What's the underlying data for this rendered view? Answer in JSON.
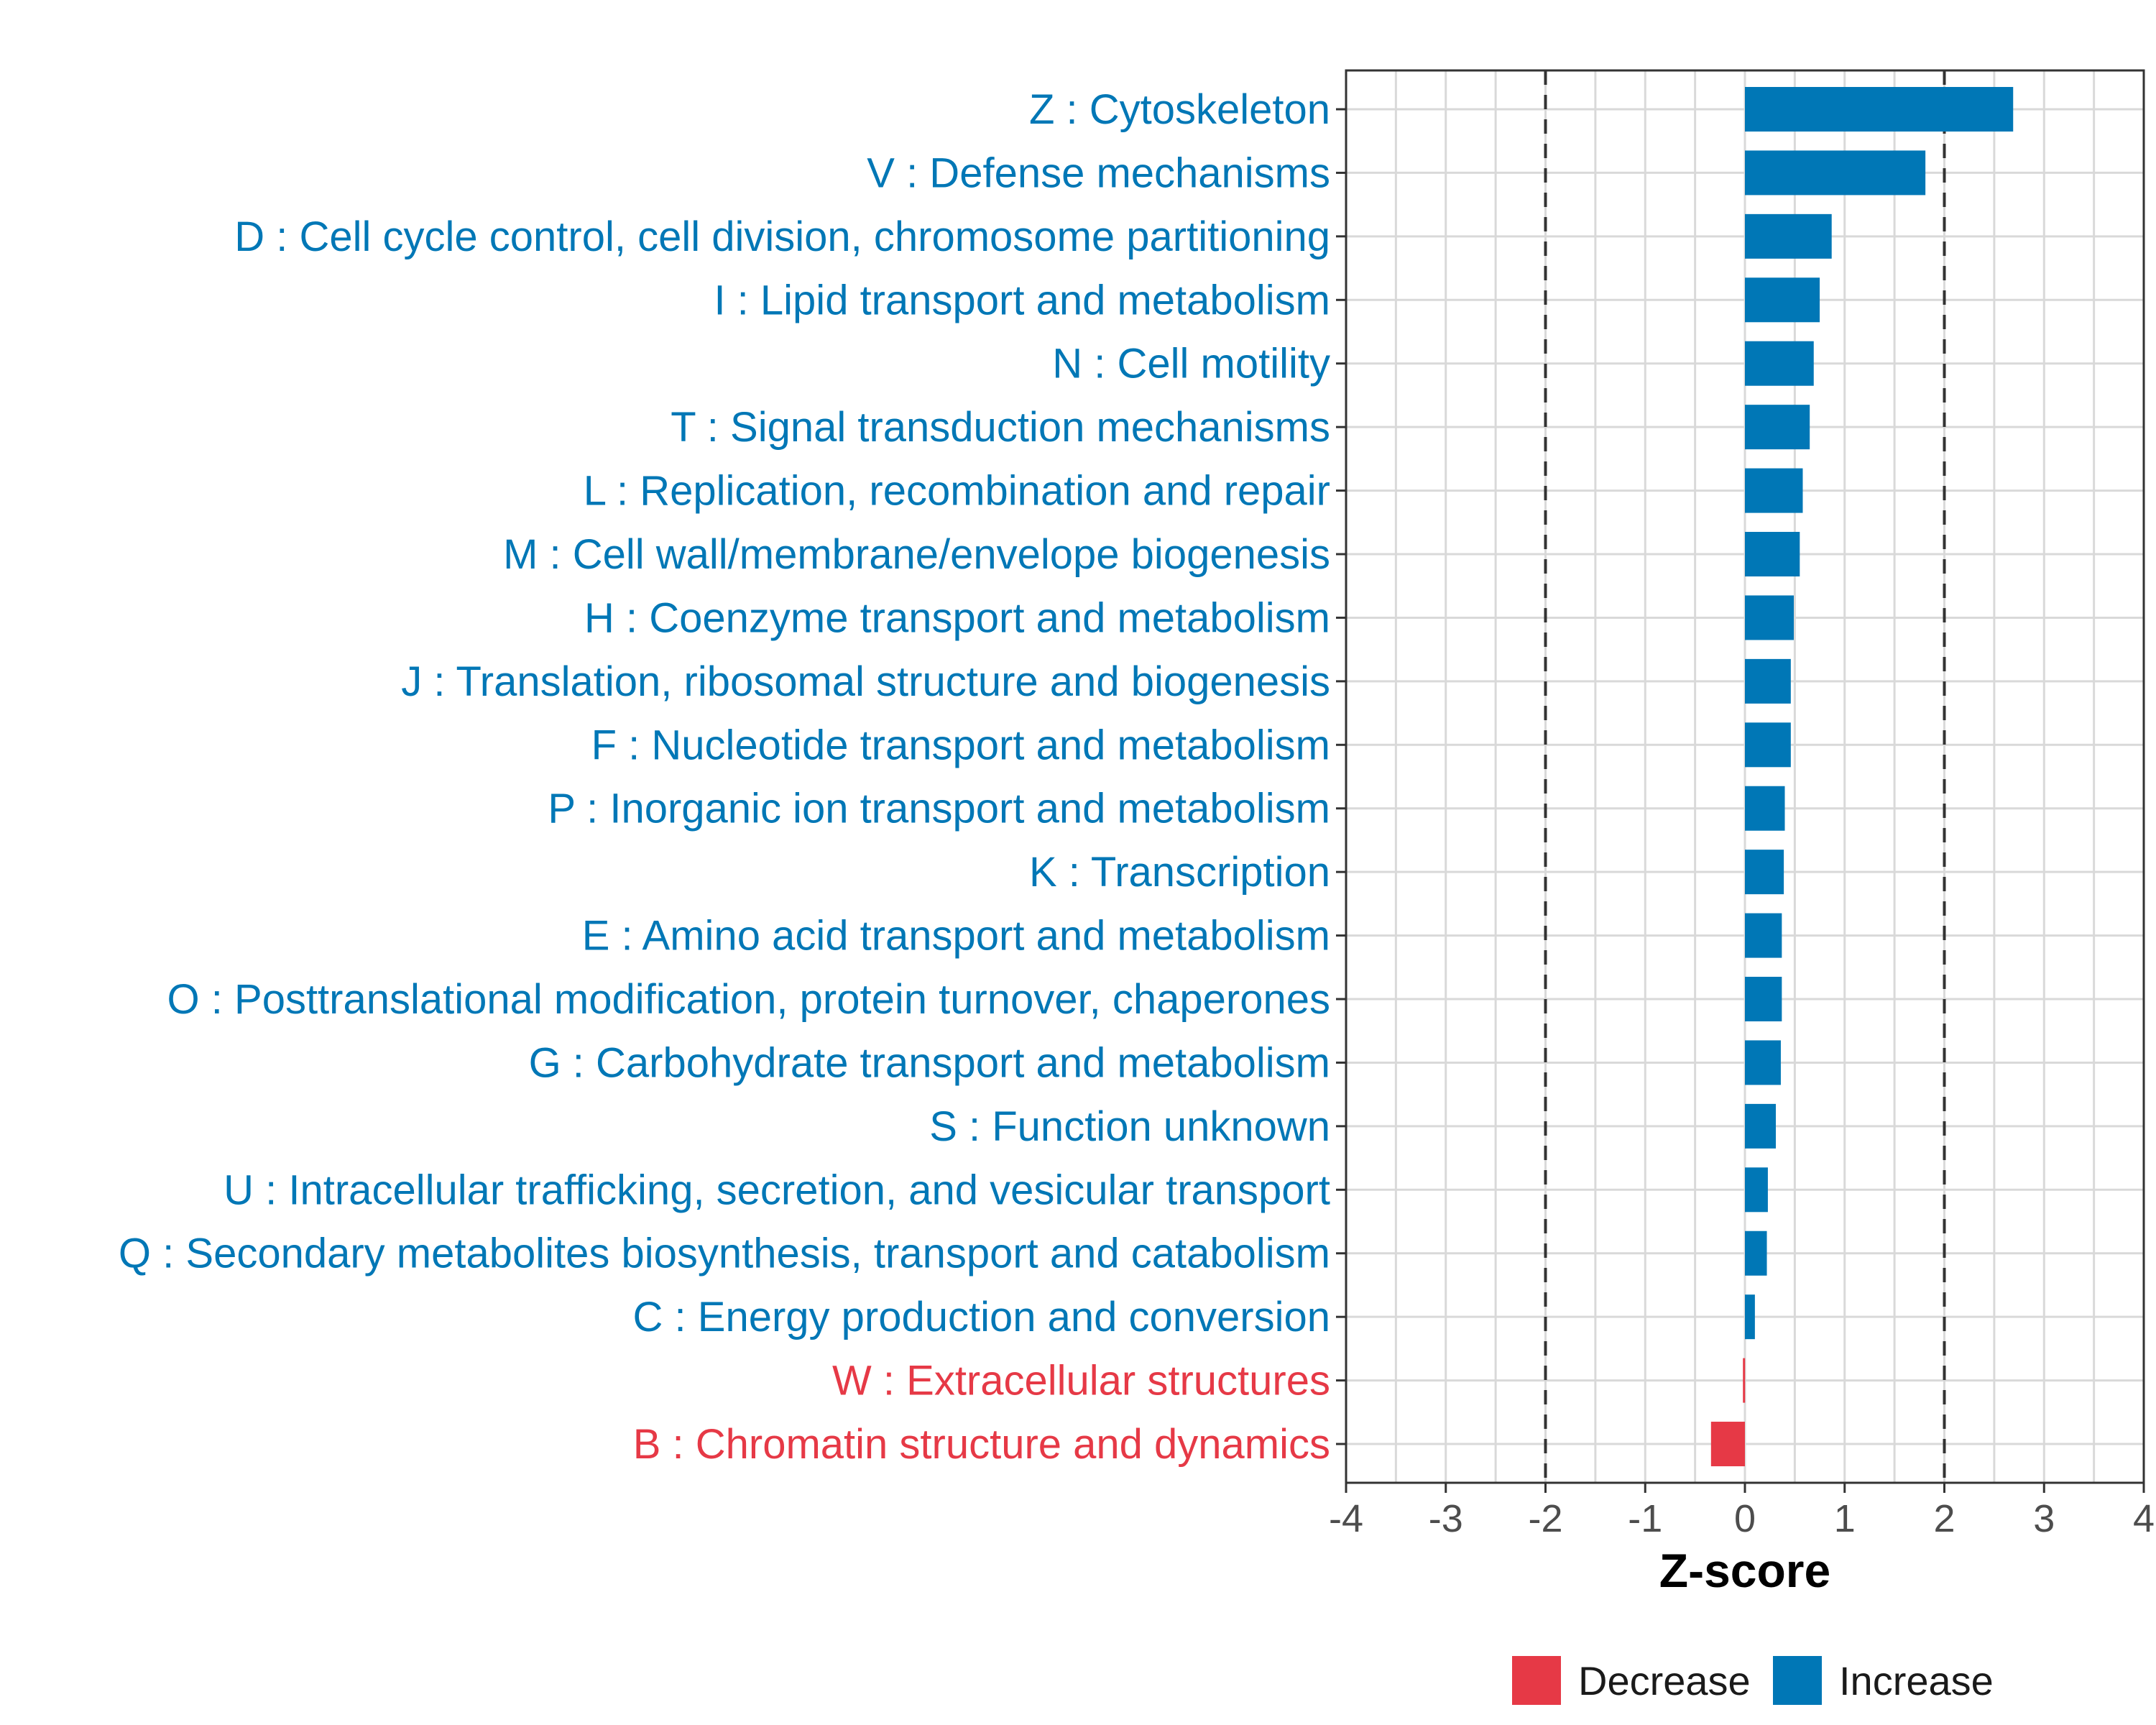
{
  "chart_data": {
    "type": "bar",
    "orientation": "horizontal",
    "title": "",
    "xlabel": "Z-score",
    "ylabel": "",
    "xlim": [
      -4,
      4
    ],
    "x_ticks": [
      "-4",
      "-3",
      "-2",
      "-1",
      "0",
      "1",
      "2",
      "3",
      "4"
    ],
    "x_tick_values": [
      -4,
      -3,
      -2,
      -1,
      0,
      1,
      2,
      3,
      4
    ],
    "reference_lines": [
      -2,
      2
    ],
    "grid": true,
    "legend_position": "bottom",
    "colors": {
      "Decrease": "#e63946",
      "Increase": "#0077b6"
    },
    "legend": [
      {
        "label": "Decrease",
        "color": "#e63946"
      },
      {
        "label": "Increase",
        "color": "#0077b6"
      }
    ],
    "categories": [
      "Z : Cytoskeleton",
      "V : Defense mechanisms",
      "D : Cell cycle control, cell division, chromosome partitioning",
      "I : Lipid transport and metabolism",
      "N : Cell motility",
      "T : Signal transduction mechanisms",
      "L : Replication, recombination and repair",
      "M : Cell wall/membrane/envelope biogenesis",
      "H : Coenzyme transport and metabolism",
      "J : Translation, ribosomal structure and biogenesis",
      "F : Nucleotide transport and metabolism",
      "P : Inorganic ion transport and metabolism",
      "K : Transcription",
      "E : Amino acid transport and metabolism",
      "O : Posttranslational modification, protein turnover, chaperones",
      "G : Carbohydrate transport and metabolism",
      "S : Function unknown",
      "U : Intracellular trafficking, secretion, and vesicular transport",
      "Q : Secondary metabolites biosynthesis, transport and catabolism",
      "C : Energy production and conversion",
      "W : Extracellular structures",
      "B : Chromatin structure and dynamics"
    ],
    "values": [
      2.69,
      1.81,
      0.87,
      0.75,
      0.69,
      0.65,
      0.58,
      0.55,
      0.49,
      0.46,
      0.46,
      0.4,
      0.39,
      0.37,
      0.37,
      0.36,
      0.31,
      0.23,
      0.22,
      0.1,
      -0.02,
      -0.34
    ],
    "groups": [
      "Increase",
      "Increase",
      "Increase",
      "Increase",
      "Increase",
      "Increase",
      "Increase",
      "Increase",
      "Increase",
      "Increase",
      "Increase",
      "Increase",
      "Increase",
      "Increase",
      "Increase",
      "Increase",
      "Increase",
      "Increase",
      "Increase",
      "Increase",
      "Decrease",
      "Decrease"
    ]
  }
}
